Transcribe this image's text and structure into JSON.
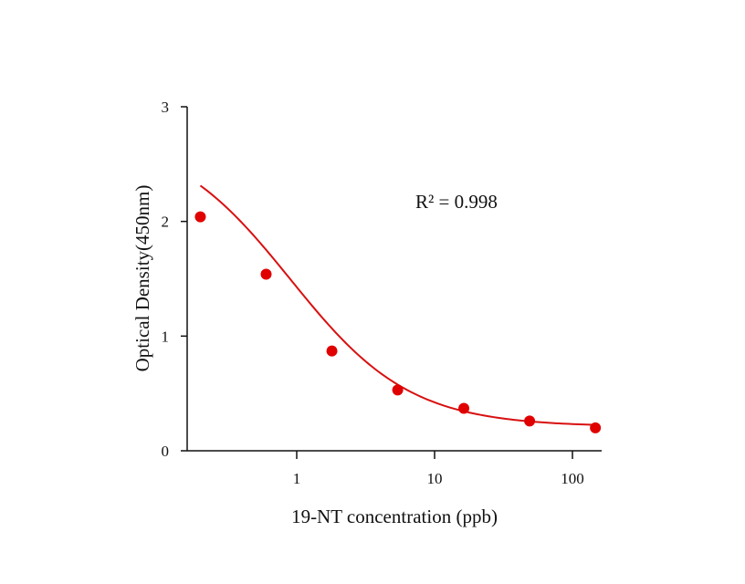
{
  "chart_data": {
    "type": "scatter",
    "title": "",
    "xlabel": "19-NT concentration (ppb)",
    "ylabel": "Optical Density(450nm)",
    "x_scale": "log",
    "xlim": [
      0.12,
      160
    ],
    "ylim": [
      0,
      3
    ],
    "x_ticks": [
      {
        "value": 1,
        "label": "1"
      },
      {
        "value": 10,
        "label": "10"
      },
      {
        "value": 100,
        "label": "100"
      }
    ],
    "y_ticks": [
      {
        "value": 0,
        "label": "0"
      },
      {
        "value": 1,
        "label": "1"
      },
      {
        "value": 2,
        "label": "2"
      },
      {
        "value": 3,
        "label": "3"
      }
    ],
    "grid": false,
    "annotation": "R² = 0.998",
    "series": [
      {
        "points": [
          {
            "x": 0.2,
            "y": 2.04
          },
          {
            "x": 0.6,
            "y": 1.54
          },
          {
            "x": 1.8,
            "y": 0.87
          },
          {
            "x": 5.4,
            "y": 0.53
          },
          {
            "x": 16.3,
            "y": 0.37
          },
          {
            "x": 48.9,
            "y": 0.26
          },
          {
            "x": 146.7,
            "y": 0.2
          }
        ],
        "fit": {
          "model": "4PL",
          "a": 2.78,
          "d": 0.21,
          "c": 0.9,
          "b": 1.0
        },
        "color": "#e00000"
      }
    ]
  }
}
